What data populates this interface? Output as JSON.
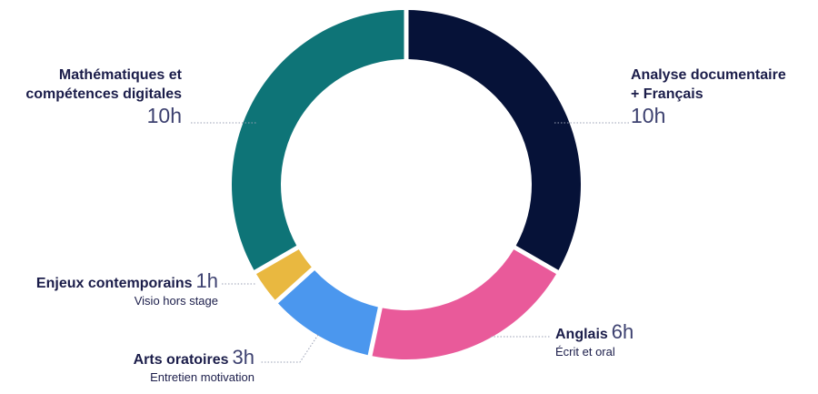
{
  "chart_data": {
    "type": "pie",
    "variant": "donut",
    "unit": "h",
    "slices": [
      {
        "label": "Analyse documentaire + Français",
        "label_lines": [
          "Analyse documentaire",
          "+ Français"
        ],
        "value": 10,
        "value_text": "10h",
        "detail": "",
        "color": "#061238"
      },
      {
        "label": "Anglais",
        "value": 6,
        "value_text": "6h",
        "detail": "Écrit et oral",
        "color": "#e95a9a"
      },
      {
        "label": "Arts oratoires",
        "value": 3,
        "value_text": "3h",
        "detail": "Entretien motivation",
        "color": "#4b97ee"
      },
      {
        "label": "Enjeux contemporains",
        "value": 1,
        "value_text": "1h",
        "detail": "Visio hors stage",
        "color": "#e9b840"
      },
      {
        "label": "Mathématiques et compétences digitales",
        "label_lines": [
          "Mathématiques et",
          "compétences digitales"
        ],
        "value": 10,
        "value_text": "10h",
        "detail": "",
        "color": "#0e7477"
      }
    ]
  }
}
